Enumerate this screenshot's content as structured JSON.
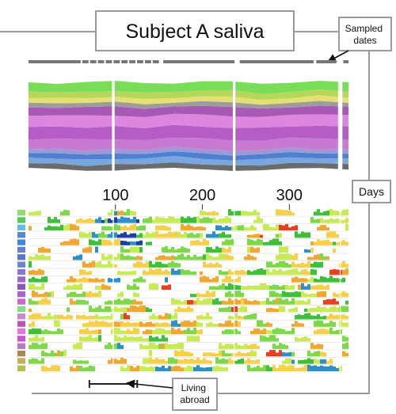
{
  "chart_data": {
    "type": "area",
    "title": "Subject A saliva",
    "subtitle": "",
    "xlabel": "Days",
    "ylabel": "",
    "xlim": [
      0,
      368
    ],
    "x_ticks": [
      "100",
      "200",
      "300"
    ],
    "x_tick_values": [
      100,
      200,
      300
    ],
    "grid": false,
    "legend": "none",
    "sampling_gaps": [
      [
        150,
        155
      ],
      [
        237,
        243
      ],
      [
        328,
        331
      ],
      [
        354,
        362
      ]
    ],
    "stream_gaps": [
      [
        96,
        99
      ],
      [
        235,
        238
      ],
      [
        356,
        361
      ]
    ],
    "stream_layers": [
      {
        "color": "#6b6b6b",
        "values": [
          0.05,
          0.06,
          0.05,
          0.07,
          0.05,
          0.06,
          0.05,
          0.06,
          0.05,
          0.06,
          0.05,
          0.06
        ]
      },
      {
        "color": "#7aa6e0",
        "values": [
          0.06,
          0.05,
          0.07,
          0.05,
          0.06,
          0.07,
          0.06,
          0.05,
          0.07,
          0.06,
          0.05,
          0.06
        ]
      },
      {
        "color": "#4f7fd0",
        "values": [
          0.05,
          0.06,
          0.05,
          0.06,
          0.05,
          0.05,
          0.06,
          0.05,
          0.05,
          0.06,
          0.05,
          0.05
        ]
      },
      {
        "color": "#9a9ad8",
        "values": [
          0.04,
          0.05,
          0.04,
          0.05,
          0.04,
          0.05,
          0.04,
          0.05,
          0.04,
          0.05,
          0.04,
          0.05
        ]
      },
      {
        "color": "#c879d2",
        "values": [
          0.1,
          0.11,
          0.12,
          0.1,
          0.11,
          0.1,
          0.12,
          0.11,
          0.1,
          0.11,
          0.12,
          0.1
        ]
      },
      {
        "color": "#b55cc6",
        "values": [
          0.14,
          0.13,
          0.12,
          0.14,
          0.13,
          0.14,
          0.12,
          0.13,
          0.14,
          0.12,
          0.13,
          0.14
        ]
      },
      {
        "color": "#dd86e0",
        "values": [
          0.12,
          0.12,
          0.13,
          0.11,
          0.12,
          0.12,
          0.13,
          0.12,
          0.11,
          0.13,
          0.12,
          0.12
        ]
      },
      {
        "color": "#a65ab5",
        "values": [
          0.09,
          0.08,
          0.09,
          0.1,
          0.09,
          0.08,
          0.09,
          0.1,
          0.09,
          0.08,
          0.09,
          0.09
        ]
      },
      {
        "color": "#9c9c9c",
        "values": [
          0.05,
          0.05,
          0.04,
          0.05,
          0.05,
          0.04,
          0.05,
          0.05,
          0.04,
          0.05,
          0.05,
          0.04
        ]
      },
      {
        "color": "#e6df74",
        "values": [
          0.05,
          0.06,
          0.05,
          0.05,
          0.06,
          0.05,
          0.05,
          0.06,
          0.05,
          0.05,
          0.06,
          0.05
        ]
      },
      {
        "color": "#b5d85a",
        "values": [
          0.07,
          0.06,
          0.07,
          0.06,
          0.07,
          0.07,
          0.06,
          0.07,
          0.06,
          0.07,
          0.06,
          0.07
        ]
      },
      {
        "color": "#79dd58",
        "values": [
          0.1,
          0.09,
          0.1,
          0.11,
          0.1,
          0.09,
          0.1,
          0.09,
          0.11,
          0.1,
          0.09,
          0.1
        ]
      }
    ],
    "heatmap_row_colors": [
      "#8fe06a",
      "#55cc55",
      "#66bbdd",
      "#5588cc",
      "#4488dd",
      "#6b7fd0",
      "#5577cc",
      "#6688cc",
      "#8877cc",
      "#9a6ac8",
      "#8a55bb",
      "#aa66cc",
      "#cc66cc",
      "#88dd88",
      "#cc88cc",
      "#bb55bb",
      "#dd77dd",
      "#cc55cc",
      "#bb77cc",
      "#a58a55",
      "#c0b060",
      "#b5c050"
    ],
    "heatmap_palette": [
      "#ffffff",
      "#c8ea55",
      "#7fd84a",
      "#3fbf3a",
      "#f5d04a",
      "#f0a830",
      "#2f8fc8",
      "#1c3fa5",
      "#e8401f"
    ]
  },
  "annotations": {
    "sampled_dates": "Sampled\ndates",
    "days": "Days",
    "living_abroad": "Living\nabroad",
    "living_abroad_range": [
      70,
      125
    ]
  }
}
